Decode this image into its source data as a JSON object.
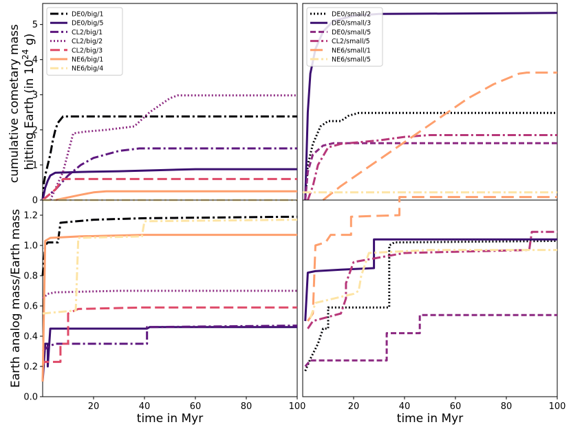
{
  "figure": {
    "ylabel_top": "cumulative cometary mass hitting Earth (in 10^24 g)",
    "ylabel_bottom": "Earth analog mass/Earth mass",
    "xlabel": "time in Myr"
  },
  "colors": {
    "black": "#000004",
    "indigo": "#3b0f70",
    "purple": "#8c2981",
    "magenta": "#b73779",
    "pink": "#de4968",
    "orange": "#fe9f6d",
    "yellow": "#fde4a5"
  },
  "chart_data": [
    {
      "panel": "top-left",
      "type": "line",
      "xlim": [
        0,
        100
      ],
      "ylim": [
        0,
        5.6
      ],
      "yticks": [
        0,
        1,
        2,
        3,
        4,
        5
      ],
      "xticks": [],
      "legend": "upper-left",
      "series": [
        {
          "name": "DE0/big/1",
          "color": "#000004",
          "dash": "12 4 3 4",
          "points": [
            [
              0,
              0
            ],
            [
              0.5,
              0.5
            ],
            [
              1,
              0.7
            ],
            [
              2,
              1.0
            ],
            [
              3,
              1.3
            ],
            [
              4,
              1.7
            ],
            [
              5,
              2.0
            ],
            [
              6,
              2.2
            ],
            [
              8,
              2.38
            ],
            [
              100,
              2.38
            ]
          ]
        },
        {
          "name": "DE0/big/5",
          "color": "#3b0f70",
          "dash": "",
          "points": [
            [
              0,
              0
            ],
            [
              1,
              0.35
            ],
            [
              2,
              0.55
            ],
            [
              3,
              0.7
            ],
            [
              5,
              0.78
            ],
            [
              15,
              0.8
            ],
            [
              30,
              0.82
            ],
            [
              45,
              0.85
            ],
            [
              60,
              0.88
            ],
            [
              100,
              0.88
            ]
          ]
        },
        {
          "name": "CL2/big/1",
          "color": "#5e177f",
          "dash": "12 4 3 4",
          "points": [
            [
              0,
              0
            ],
            [
              5,
              0.3
            ],
            [
              10,
              0.7
            ],
            [
              15,
              1.0
            ],
            [
              20,
              1.2
            ],
            [
              30,
              1.4
            ],
            [
              38,
              1.47
            ],
            [
              100,
              1.47
            ]
          ]
        },
        {
          "name": "CL2/big/2",
          "color": "#8c2981",
          "dash": "2 3",
          "points": [
            [
              3,
              0
            ],
            [
              8,
              0.8
            ],
            [
              12,
              1.9
            ],
            [
              17,
              1.95
            ],
            [
              25,
              2.0
            ],
            [
              36,
              2.1
            ],
            [
              42,
              2.5
            ],
            [
              50,
              2.9
            ],
            [
              53,
              2.98
            ],
            [
              100,
              2.98
            ]
          ]
        },
        {
          "name": "CL2/big/3",
          "color": "#de4968",
          "dash": "14 6",
          "points": [
            [
              0,
              0
            ],
            [
              5,
              0.3
            ],
            [
              8,
              0.6
            ],
            [
              100,
              0.6
            ]
          ]
        },
        {
          "name": "NE6/big/1",
          "color": "#fe9f6d",
          "dash": "",
          "points": [
            [
              5,
              0
            ],
            [
              15,
              0.15
            ],
            [
              20,
              0.22
            ],
            [
              25,
              0.25
            ],
            [
              100,
              0.25
            ]
          ]
        },
        {
          "name": "NE6/big/4",
          "color": "#fde4a5",
          "dash": "12 4 3 4",
          "points": [
            [
              0,
              0
            ],
            [
              100,
              0
            ]
          ]
        }
      ]
    },
    {
      "panel": "top-right",
      "type": "line",
      "xlim": [
        0,
        100
      ],
      "ylim": [
        0,
        5.6
      ],
      "xticks": [],
      "legend": "upper-left",
      "series": [
        {
          "name": "DE0/small/2",
          "color": "#000004",
          "dash": "2 3",
          "points": [
            [
              1,
              0
            ],
            [
              2,
              1.0
            ],
            [
              4,
              1.6
            ],
            [
              7,
              2.1
            ],
            [
              10,
              2.25
            ],
            [
              15,
              2.25
            ],
            [
              18,
              2.4
            ],
            [
              22,
              2.48
            ],
            [
              100,
              2.48
            ]
          ]
        },
        {
          "name": "DE0/small/3",
          "color": "#3b0f70",
          "dash": "",
          "points": [
            [
              1,
              0
            ],
            [
              2,
              2.5
            ],
            [
              3,
              3.6
            ],
            [
              5,
              4.3
            ],
            [
              8,
              4.8
            ],
            [
              12,
              5.1
            ],
            [
              20,
              5.25
            ],
            [
              30,
              5.3
            ],
            [
              100,
              5.33
            ]
          ]
        },
        {
          "name": "DE0/small/5",
          "color": "#8c2981",
          "dash": "8 4",
          "points": [
            [
              1,
              0
            ],
            [
              2,
              0.8
            ],
            [
              4,
              1.3
            ],
            [
              8,
              1.55
            ],
            [
              12,
              1.62
            ],
            [
              100,
              1.62
            ]
          ]
        },
        {
          "name": "CL2/small/5",
          "color": "#b73779",
          "dash": "12 4 3 4",
          "points": [
            [
              2,
              0
            ],
            [
              4,
              0.4
            ],
            [
              6,
              1.0
            ],
            [
              10,
              1.5
            ],
            [
              15,
              1.6
            ],
            [
              30,
              1.7
            ],
            [
              40,
              1.8
            ],
            [
              50,
              1.85
            ],
            [
              100,
              1.85
            ]
          ]
        },
        {
          "name": "NE6/small/1",
          "color": "#fe9f6d",
          "dash": "18 8",
          "points": [
            [
              8,
              0
            ],
            [
              15,
              0.4
            ],
            [
              25,
              0.9
            ],
            [
              35,
              1.4
            ],
            [
              45,
              1.9
            ],
            [
              55,
              2.4
            ],
            [
              65,
              2.9
            ],
            [
              75,
              3.3
            ],
            [
              85,
              3.6
            ],
            [
              88,
              3.63
            ],
            [
              100,
              3.63
            ]
          ]
        },
        {
          "name": "NE6/small/5",
          "color": "#fde4a5",
          "dash": "12 4 3 4",
          "points": [
            [
              0,
              0.22
            ],
            [
              100,
              0.22
            ]
          ]
        }
      ]
    },
    {
      "panel": "bottom-left",
      "type": "line",
      "xlim": [
        0,
        100
      ],
      "ylim": [
        0,
        1.3
      ],
      "yticks": [
        0.0,
        0.2,
        0.4,
        0.6,
        0.8,
        1.0,
        1.2
      ],
      "xticks": [
        20,
        40,
        60,
        80,
        100
      ],
      "series": [
        {
          "name": "DE0/big/1",
          "color": "#000004",
          "dash": "12 4 3 4",
          "points": [
            [
              0,
              0.8
            ],
            [
              1,
              1.0
            ],
            [
              2,
              1.02
            ],
            [
              6,
              1.02
            ],
            [
              7,
              1.15
            ],
            [
              20,
              1.17
            ],
            [
              40,
              1.18
            ],
            [
              100,
              1.19
            ]
          ]
        },
        {
          "name": "DE0/big/5",
          "color": "#3b0f70",
          "dash": "",
          "points": [
            [
              0,
              0.1
            ],
            [
              1,
              0.35
            ],
            [
              2,
              0.35
            ],
            [
              2,
              0.2
            ],
            [
              3,
              0.45
            ],
            [
              41,
              0.45
            ],
            [
              42,
              0.46
            ],
            [
              100,
              0.46
            ]
          ]
        },
        {
          "name": "CL2/big/1",
          "color": "#5e177f",
          "dash": "12 4 3 4",
          "points": [
            [
              0,
              0.3
            ],
            [
              2,
              0.33
            ],
            [
              5,
              0.35
            ],
            [
              41,
              0.35
            ],
            [
              41,
              0.46
            ],
            [
              100,
              0.47
            ]
          ]
        },
        {
          "name": "CL2/big/2",
          "color": "#8c2981",
          "dash": "2 3",
          "points": [
            [
              0,
              0.65
            ],
            [
              2,
              0.68
            ],
            [
              5,
              0.69
            ],
            [
              30,
              0.7
            ],
            [
              100,
              0.7
            ]
          ]
        },
        {
          "name": "CL2/big/3",
          "color": "#de4968",
          "dash": "14 6",
          "points": [
            [
              0,
              0.2
            ],
            [
              0.5,
              0.23
            ],
            [
              7,
              0.23
            ],
            [
              7,
              0.35
            ],
            [
              10,
              0.35
            ],
            [
              10,
              0.55
            ],
            [
              14,
              0.58
            ],
            [
              40,
              0.59
            ],
            [
              100,
              0.59
            ]
          ]
        },
        {
          "name": "NE6/big/1",
          "color": "#fe9f6d",
          "dash": "",
          "points": [
            [
              0,
              0.1
            ],
            [
              1,
              1.03
            ],
            [
              3,
              1.05
            ],
            [
              15,
              1.06
            ],
            [
              40,
              1.07
            ],
            [
              100,
              1.07
            ]
          ]
        },
        {
          "name": "NE6/big/4",
          "color": "#fde4a5",
          "dash": "12 4 3 4",
          "points": [
            [
              0,
              0.55
            ],
            [
              13,
              0.57
            ],
            [
              14,
              1.05
            ],
            [
              39,
              1.06
            ],
            [
              40,
              1.16
            ],
            [
              100,
              1.17
            ]
          ]
        }
      ]
    },
    {
      "panel": "bottom-right",
      "type": "line",
      "xlim": [
        0,
        100
      ],
      "ylim": [
        0,
        1.3
      ],
      "xticks": [
        20,
        40,
        60,
        80,
        100
      ],
      "series": [
        {
          "name": "DE0/small/2",
          "color": "#000004",
          "dash": "2 3",
          "points": [
            [
              1,
              0.17
            ],
            [
              3,
              0.25
            ],
            [
              6,
              0.35
            ],
            [
              8,
              0.45
            ],
            [
              10,
              0.45
            ],
            [
              10,
              0.59
            ],
            [
              34,
              0.59
            ],
            [
              34,
              1.0
            ],
            [
              36,
              1.02
            ],
            [
              100,
              1.03
            ]
          ]
        },
        {
          "name": "DE0/small/3",
          "color": "#3b0f70",
          "dash": "",
          "points": [
            [
              1,
              0.5
            ],
            [
              2,
              0.82
            ],
            [
              5,
              0.83
            ],
            [
              15,
              0.84
            ],
            [
              28,
              0.85
            ],
            [
              28,
              1.04
            ],
            [
              100,
              1.04
            ]
          ]
        },
        {
          "name": "DE0/small/5",
          "color": "#8c2981",
          "dash": "8 4",
          "points": [
            [
              1,
              0.2
            ],
            [
              3,
              0.24
            ],
            [
              33,
              0.24
            ],
            [
              33,
              0.42
            ],
            [
              46,
              0.42
            ],
            [
              46,
              0.54
            ],
            [
              100,
              0.54
            ]
          ]
        },
        {
          "name": "CL2/small/5",
          "color": "#b73779",
          "dash": "12 4 3 4",
          "points": [
            [
              2,
              0.45
            ],
            [
              4,
              0.5
            ],
            [
              15,
              0.55
            ],
            [
              17,
              0.65
            ],
            [
              17,
              0.75
            ],
            [
              20,
              0.89
            ],
            [
              40,
              0.95
            ],
            [
              89,
              0.97
            ],
            [
              90,
              1.09
            ],
            [
              100,
              1.09
            ]
          ]
        },
        {
          "name": "NE6/small/1",
          "color": "#fe9f6d",
          "dash": "18 8",
          "points": [
            [
              2,
              0.5
            ],
            [
              4,
              0.55
            ],
            [
              5,
              1.0
            ],
            [
              9,
              1.02
            ],
            [
              11,
              1.07
            ],
            [
              19,
              1.07
            ],
            [
              19,
              1.19
            ],
            [
              38,
              1.2
            ],
            [
              38,
              1.32
            ],
            [
              100,
              1.32
            ]
          ]
        },
        {
          "name": "NE6/small/5",
          "color": "#fde4a5",
          "dash": "12 4 3 4",
          "points": [
            [
              3,
              0.52
            ],
            [
              5,
              0.62
            ],
            [
              20,
              0.68
            ],
            [
              22,
              0.7
            ],
            [
              23,
              0.8
            ],
            [
              26,
              0.95
            ],
            [
              50,
              0.97
            ],
            [
              100,
              0.97
            ]
          ]
        }
      ]
    }
  ]
}
